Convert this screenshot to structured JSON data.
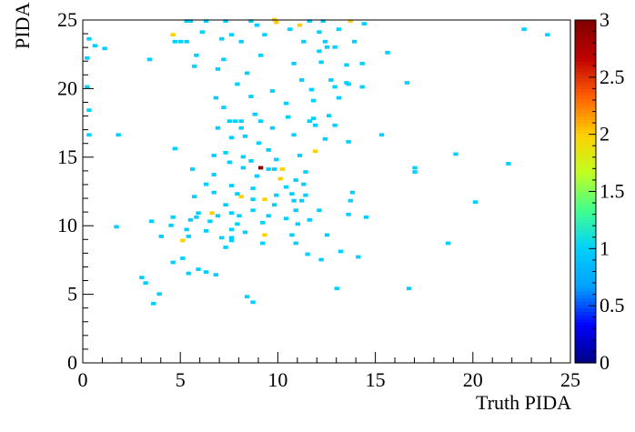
{
  "chart_data": {
    "type": "heatmap",
    "title": "",
    "xlabel": "Truth PIDA",
    "ylabel": "PIDA",
    "xlim": [
      0,
      25
    ],
    "ylim": [
      0,
      25
    ],
    "xticks": [
      "0",
      "5",
      "10",
      "15",
      "20",
      "25"
    ],
    "yticks": [
      "0",
      "5",
      "10",
      "15",
      "20",
      "25"
    ],
    "zlim": [
      0,
      3
    ],
    "zticks": [
      "0",
      "0.5",
      "1",
      "1.5",
      "2",
      "2.5",
      "3"
    ],
    "colormap": [
      "#000080",
      "#0000ff",
      "#00a0ff",
      "#00d0ff",
      "#40ff90",
      "#c0ff20",
      "#ffd000",
      "#ff6000",
      "#c00000",
      "#800000"
    ],
    "bin_size": 0.25,
    "grid": false,
    "bins": [
      [
        9.0,
        14.1,
        3
      ],
      [
        9.8,
        24.7,
        2
      ],
      [
        11.0,
        24.5,
        2
      ],
      [
        13.6,
        24.8,
        2
      ],
      [
        4.5,
        23.8,
        2
      ],
      [
        11.8,
        15.3,
        2
      ],
      [
        10.1,
        14.0,
        2
      ],
      [
        10.0,
        13.3,
        2
      ],
      [
        9.2,
        11.8,
        2
      ],
      [
        8.0,
        12.0,
        2
      ],
      [
        6.5,
        10.8,
        2
      ],
      [
        5.0,
        8.8,
        2
      ],
      [
        9.2,
        9.2,
        2
      ],
      [
        9.7,
        24.9,
        2
      ],
      [
        5.2,
        24.8,
        1
      ],
      [
        5.4,
        24.8,
        1
      ],
      [
        6.2,
        24.8,
        1
      ],
      [
        7.2,
        24.8,
        1
      ],
      [
        8.5,
        24.8,
        1
      ],
      [
        11.5,
        24.8,
        1
      ],
      [
        12.2,
        24.8,
        1
      ],
      [
        14.3,
        24.6,
        1
      ],
      [
        8.8,
        24.5,
        1
      ],
      [
        10.5,
        24.2,
        1
      ],
      [
        12.0,
        24.0,
        1
      ],
      [
        13.0,
        24.2,
        1
      ],
      [
        6.0,
        24.0,
        1
      ],
      [
        0.2,
        23.5,
        1
      ],
      [
        0.5,
        23.0,
        1
      ],
      [
        1.0,
        22.8,
        1
      ],
      [
        4.6,
        23.3,
        1
      ],
      [
        4.9,
        23.3,
        1
      ],
      [
        5.2,
        23.3,
        1
      ],
      [
        7.0,
        23.5,
        1
      ],
      [
        7.5,
        23.8,
        1
      ],
      [
        8.0,
        23.3,
        1
      ],
      [
        9.2,
        23.8,
        1
      ],
      [
        11.2,
        23.3,
        1
      ],
      [
        12.3,
        23.3,
        1
      ],
      [
        13.8,
        23.3,
        1
      ],
      [
        12.0,
        22.6,
        1
      ],
      [
        12.4,
        22.9,
        1
      ],
      [
        12.8,
        22.9,
        1
      ],
      [
        15.5,
        22.5,
        1
      ],
      [
        22.5,
        24.2,
        1
      ],
      [
        23.7,
        23.8,
        1
      ],
      [
        0.1,
        22.1,
        1
      ],
      [
        3.3,
        22.0,
        1
      ],
      [
        5.7,
        22.3,
        1
      ],
      [
        7.1,
        22.0,
        1
      ],
      [
        9.0,
        22.3,
        1
      ],
      [
        10.7,
        21.7,
        1
      ],
      [
        12.1,
        21.8,
        1
      ],
      [
        13.4,
        21.6,
        1
      ],
      [
        14.2,
        21.7,
        1
      ],
      [
        5.6,
        21.5,
        1
      ],
      [
        6.8,
        21.3,
        1
      ],
      [
        8.3,
        21.0,
        1
      ],
      [
        11.1,
        20.5,
        1
      ],
      [
        12.6,
        20.5,
        1
      ],
      [
        13.4,
        20.3,
        1
      ],
      [
        16.5,
        20.3,
        1
      ],
      [
        0.1,
        20.0,
        1
      ],
      [
        7.8,
        20.2,
        1
      ],
      [
        9.6,
        19.7,
        1
      ],
      [
        11.6,
        19.8,
        1
      ],
      [
        12.8,
        20.0,
        1
      ],
      [
        13.5,
        20.2,
        1
      ],
      [
        14.2,
        20.0,
        1
      ],
      [
        6.7,
        19.2,
        1
      ],
      [
        8.5,
        19.3,
        1
      ],
      [
        10.3,
        18.8,
        1
      ],
      [
        11.7,
        19.0,
        1
      ],
      [
        13.0,
        19.2,
        1
      ],
      [
        7.1,
        18.5,
        1
      ],
      [
        8.7,
        18.0,
        1
      ],
      [
        0.2,
        18.3,
        1
      ],
      [
        9.0,
        17.5,
        1
      ],
      [
        10.4,
        17.8,
        1
      ],
      [
        11.7,
        17.7,
        1
      ],
      [
        12.5,
        17.9,
        1
      ],
      [
        7.4,
        17.5,
        1
      ],
      [
        7.7,
        17.5,
        1
      ],
      [
        8.0,
        17.5,
        1
      ],
      [
        6.8,
        17.0,
        1
      ],
      [
        8.0,
        17.0,
        1
      ],
      [
        9.6,
        17.0,
        1
      ],
      [
        11.5,
        17.5,
        1
      ],
      [
        11.8,
        17.2,
        1
      ],
      [
        12.8,
        17.2,
        1
      ],
      [
        0.2,
        16.5,
        1
      ],
      [
        1.7,
        16.5,
        1
      ],
      [
        7.5,
        16.3,
        1
      ],
      [
        8.2,
        16.4,
        1
      ],
      [
        10.7,
        16.5,
        1
      ],
      [
        12.3,
        16.2,
        1
      ],
      [
        13.5,
        16.0,
        1
      ],
      [
        15.2,
        16.5,
        1
      ],
      [
        4.6,
        15.5,
        1
      ],
      [
        8.9,
        15.9,
        1
      ],
      [
        9.4,
        15.4,
        1
      ],
      [
        6.6,
        15.0,
        1
      ],
      [
        7.2,
        15.2,
        1
      ],
      [
        8.1,
        14.9,
        1
      ],
      [
        11.0,
        15.0,
        1
      ],
      [
        19.0,
        15.1,
        1
      ],
      [
        7.4,
        14.5,
        1
      ],
      [
        8.5,
        14.6,
        1
      ],
      [
        9.8,
        14.7,
        1
      ],
      [
        16.9,
        14.1,
        1
      ],
      [
        21.7,
        14.4,
        1
      ],
      [
        5.5,
        14.0,
        1
      ],
      [
        8.1,
        14.1,
        1
      ],
      [
        9.4,
        14.0,
        1
      ],
      [
        9.7,
        14.0,
        1
      ],
      [
        11.3,
        13.8,
        1
      ],
      [
        6.6,
        13.6,
        1
      ],
      [
        8.8,
        13.5,
        1
      ],
      [
        10.8,
        13.2,
        1
      ],
      [
        16.9,
        13.8,
        1
      ],
      [
        6.2,
        12.9,
        1
      ],
      [
        7.5,
        12.8,
        1
      ],
      [
        8.6,
        12.6,
        1
      ],
      [
        10.3,
        12.7,
        1
      ],
      [
        11.2,
        12.9,
        1
      ],
      [
        6.6,
        12.3,
        1
      ],
      [
        7.8,
        12.2,
        1
      ],
      [
        9.8,
        12.1,
        1
      ],
      [
        10.6,
        12.2,
        1
      ],
      [
        11.3,
        12.1,
        1
      ],
      [
        5.6,
        12.0,
        1
      ],
      [
        8.6,
        11.8,
        1
      ],
      [
        10.7,
        11.7,
        1
      ],
      [
        11.1,
        11.7,
        1
      ],
      [
        13.7,
        12.3,
        1
      ],
      [
        13.6,
        11.7,
        1
      ],
      [
        7.2,
        11.4,
        1
      ],
      [
        9.7,
        11.4,
        1
      ],
      [
        20.0,
        11.6,
        1
      ],
      [
        5.8,
        10.8,
        1
      ],
      [
        7.5,
        10.8,
        1
      ],
      [
        8.6,
        11.0,
        1
      ],
      [
        10.8,
        11.0,
        1
      ],
      [
        12.0,
        11.0,
        1
      ],
      [
        5.7,
        10.5,
        1
      ],
      [
        6.8,
        10.6,
        1
      ],
      [
        7.9,
        10.6,
        1
      ],
      [
        9.4,
        10.6,
        1
      ],
      [
        10.3,
        10.4,
        1
      ],
      [
        13.5,
        10.7,
        1
      ],
      [
        14.4,
        10.5,
        1
      ],
      [
        4.5,
        10.5,
        1
      ],
      [
        1.6,
        9.8,
        1
      ],
      [
        3.4,
        10.2,
        1
      ],
      [
        4.4,
        9.9,
        1
      ],
      [
        5.4,
        10.3,
        1
      ],
      [
        6.4,
        10.2,
        1
      ],
      [
        7.8,
        10.0,
        1
      ],
      [
        9.1,
        10.1,
        1
      ],
      [
        10.9,
        10.0,
        1
      ],
      [
        11.5,
        10.3,
        1
      ],
      [
        5.2,
        9.6,
        1
      ],
      [
        6.2,
        9.5,
        1
      ],
      [
        7.5,
        9.6,
        1
      ],
      [
        8.2,
        9.4,
        1
      ],
      [
        3.9,
        9.1,
        1
      ],
      [
        5.3,
        9.1,
        1
      ],
      [
        7.0,
        9.0,
        1
      ],
      [
        7.5,
        9.0,
        1
      ],
      [
        10.6,
        9.2,
        1
      ],
      [
        12.4,
        9.2,
        1
      ],
      [
        7.5,
        8.8,
        1
      ],
      [
        9.1,
        8.6,
        1
      ],
      [
        10.8,
        8.6,
        1
      ],
      [
        18.6,
        8.6,
        1
      ],
      [
        7.2,
        8.3,
        1
      ],
      [
        13.1,
        8.0,
        1
      ],
      [
        11.4,
        7.8,
        1
      ],
      [
        14.0,
        7.6,
        1
      ],
      [
        4.5,
        7.2,
        1
      ],
      [
        5.0,
        7.5,
        1
      ],
      [
        12.1,
        7.4,
        1
      ],
      [
        5.3,
        6.4,
        1
      ],
      [
        5.8,
        6.7,
        1
      ],
      [
        6.2,
        6.5,
        1
      ],
      [
        6.7,
        6.3,
        1
      ],
      [
        2.9,
        6.1,
        1
      ],
      [
        3.1,
        5.7,
        1
      ],
      [
        12.9,
        5.3,
        1
      ],
      [
        16.6,
        5.3,
        1
      ],
      [
        3.8,
        4.9,
        1
      ],
      [
        3.5,
        4.2,
        1
      ],
      [
        8.6,
        4.3,
        1
      ],
      [
        8.3,
        4.7,
        1
      ]
    ]
  }
}
